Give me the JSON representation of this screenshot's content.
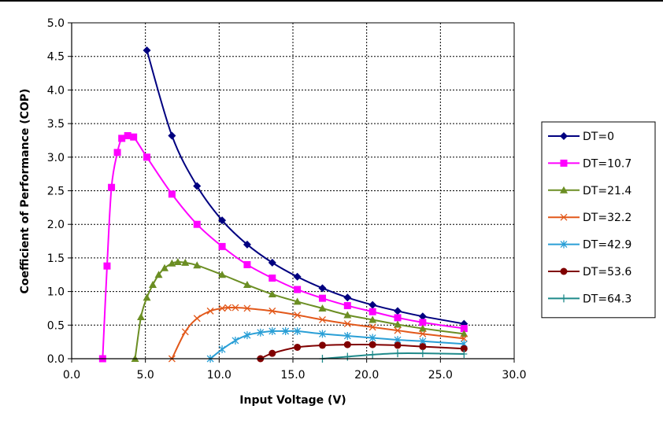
{
  "chart_data": {
    "type": "line",
    "title": "",
    "xlabel": "Input Voltage (V)",
    "ylabel": "Coefficient of Performance (COP)",
    "xlim": [
      0,
      30
    ],
    "ylim": [
      0,
      5
    ],
    "x_ticks": [
      "0.0",
      "5.0",
      "10.0",
      "15.0",
      "20.0",
      "25.0",
      "30.0"
    ],
    "y_ticks": [
      "0.0",
      "0.5",
      "1.0",
      "1.5",
      "2.0",
      "2.5",
      "3.0",
      "3.5",
      "4.0",
      "4.5",
      "5.0"
    ],
    "grid": true,
    "legend_position": "right",
    "series": [
      {
        "name": "DT=0",
        "color": "#000080",
        "marker": "diamond",
        "points": [
          [
            5.1,
            4.59
          ],
          [
            6.8,
            3.32
          ],
          [
            8.5,
            2.57
          ],
          [
            10.2,
            2.06
          ],
          [
            11.9,
            1.7
          ],
          [
            13.6,
            1.43
          ],
          [
            15.3,
            1.22
          ],
          [
            17.0,
            1.05
          ],
          [
            18.7,
            0.91
          ],
          [
            20.4,
            0.8
          ],
          [
            22.1,
            0.71
          ],
          [
            23.8,
            0.63
          ],
          [
            26.6,
            0.52
          ]
        ]
      },
      {
        "name": "DT=10.7",
        "color": "#FF00FF",
        "marker": "square",
        "points": [
          [
            2.1,
            0.0
          ],
          [
            2.4,
            1.38
          ],
          [
            2.7,
            2.55
          ],
          [
            3.1,
            3.07
          ],
          [
            3.4,
            3.28
          ],
          [
            3.8,
            3.32
          ],
          [
            4.2,
            3.3
          ],
          [
            5.1,
            3.0
          ],
          [
            6.8,
            2.45
          ],
          [
            8.5,
            2.0
          ],
          [
            10.2,
            1.67
          ],
          [
            11.9,
            1.4
          ],
          [
            13.6,
            1.2
          ],
          [
            15.3,
            1.03
          ],
          [
            17.0,
            0.9
          ],
          [
            18.7,
            0.79
          ],
          [
            20.4,
            0.7
          ],
          [
            22.1,
            0.61
          ],
          [
            23.8,
            0.54
          ],
          [
            26.6,
            0.45
          ]
        ]
      },
      {
        "name": "DT=21.4",
        "color": "#6B8E23",
        "marker": "triangle",
        "points": [
          [
            4.3,
            0.0
          ],
          [
            4.7,
            0.62
          ],
          [
            5.1,
            0.91
          ],
          [
            5.5,
            1.1
          ],
          [
            5.9,
            1.25
          ],
          [
            6.3,
            1.35
          ],
          [
            6.8,
            1.42
          ],
          [
            7.2,
            1.44
          ],
          [
            7.7,
            1.43
          ],
          [
            8.5,
            1.39
          ],
          [
            10.2,
            1.25
          ],
          [
            11.9,
            1.1
          ],
          [
            13.6,
            0.96
          ],
          [
            15.3,
            0.85
          ],
          [
            17.0,
            0.75
          ],
          [
            18.7,
            0.65
          ],
          [
            20.4,
            0.58
          ],
          [
            22.1,
            0.51
          ],
          [
            23.8,
            0.45
          ],
          [
            26.6,
            0.37
          ]
        ]
      },
      {
        "name": "DT=32.2",
        "color": "#E2581A",
        "marker": "x",
        "points": [
          [
            6.8,
            0.0
          ],
          [
            7.7,
            0.4
          ],
          [
            8.5,
            0.6
          ],
          [
            9.4,
            0.71
          ],
          [
            10.2,
            0.75
          ],
          [
            10.6,
            0.76
          ],
          [
            11.1,
            0.76
          ],
          [
            11.9,
            0.75
          ],
          [
            13.6,
            0.71
          ],
          [
            15.3,
            0.65
          ],
          [
            17.0,
            0.58
          ],
          [
            18.7,
            0.52
          ],
          [
            20.4,
            0.47
          ],
          [
            22.1,
            0.42
          ],
          [
            23.8,
            0.37
          ],
          [
            26.6,
            0.3
          ]
        ]
      },
      {
        "name": "DT=42.9",
        "color": "#2A9FD6",
        "marker": "star",
        "points": [
          [
            9.4,
            0.0
          ],
          [
            10.2,
            0.14
          ],
          [
            11.1,
            0.27
          ],
          [
            11.9,
            0.35
          ],
          [
            12.8,
            0.39
          ],
          [
            13.6,
            0.41
          ],
          [
            14.5,
            0.41
          ],
          [
            15.3,
            0.41
          ],
          [
            17.0,
            0.37
          ],
          [
            18.7,
            0.34
          ],
          [
            20.4,
            0.31
          ],
          [
            22.1,
            0.28
          ],
          [
            23.8,
            0.26
          ],
          [
            26.6,
            0.22
          ]
        ]
      },
      {
        "name": "DT=53.6",
        "color": "#800000",
        "marker": "circle",
        "points": [
          [
            12.8,
            0.0
          ],
          [
            13.6,
            0.08
          ],
          [
            15.3,
            0.17
          ],
          [
            17.0,
            0.2
          ],
          [
            18.7,
            0.21
          ],
          [
            20.4,
            0.21
          ],
          [
            22.1,
            0.2
          ],
          [
            23.8,
            0.18
          ],
          [
            26.6,
            0.15
          ]
        ]
      },
      {
        "name": "DT=64.3",
        "color": "#1F8A8A",
        "marker": "plus",
        "points": [
          [
            17.0,
            0.0
          ],
          [
            18.7,
            0.03
          ],
          [
            20.4,
            0.06
          ],
          [
            22.1,
            0.08
          ],
          [
            23.8,
            0.08
          ],
          [
            26.6,
            0.07
          ]
        ]
      }
    ]
  }
}
